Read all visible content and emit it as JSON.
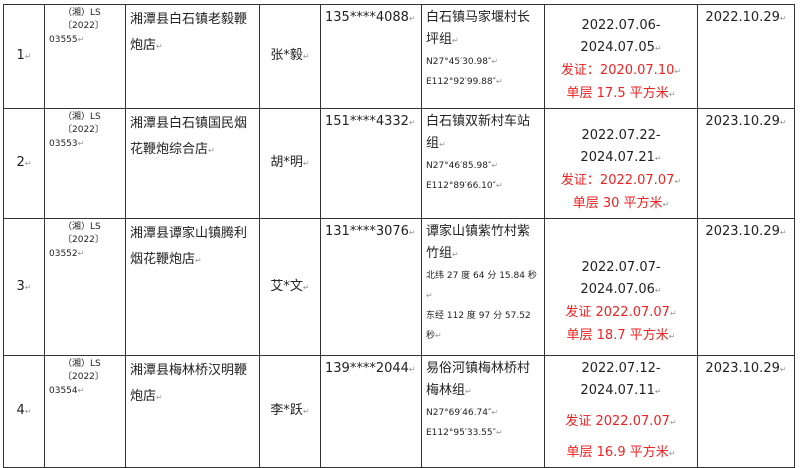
{
  "rows": [
    {
      "no": "1",
      "permit": [
        "（湘）LS",
        "〔2022〕",
        "03555"
      ],
      "shop": "湘潭县白石镇老毅鞭炮店",
      "person": "张*毅",
      "phone": "135****4088",
      "address": "白石镇马家堰村长坪组",
      "coords": [
        "N27°45′30.98″",
        "E112°92′99.88″"
      ],
      "validity": "2022.07.06-2024.07.05",
      "issue": "发证：2020.07.10",
      "area": "单层 17.5 平方米",
      "date": "2022.10.29"
    },
    {
      "no": "2",
      "permit": [
        "（湘）LS",
        "〔2022〕",
        "03553"
      ],
      "shop": "湘潭县白石镇国民烟花鞭炮综合店",
      "person": "胡*明",
      "phone": "151****4332",
      "address": "白石镇双新村车站组",
      "coords": [
        "N27°46′85.98″",
        "E112°89′66.10″"
      ],
      "validity": "2022.07.22-2024.07.21",
      "issue": "发证：2022.07.07",
      "area": "单层 30 平方米",
      "date": "2023.10.29"
    },
    {
      "no": "3",
      "permit": [
        "（湘）LS",
        "〔2022〕",
        "03552"
      ],
      "shop": "湘潭县谭家山镇腾利烟花鞭炮店",
      "person": "艾*文",
      "phone": "131****3076",
      "address": "谭家山镇紫竹村紫竹组",
      "coords": [
        "北纬 27 度 64 分 15.84 秒",
        "东经 112 度 97 分 57.52 秒"
      ],
      "validity": "2022.07.07-2024.07.06",
      "issue": "发证 2022.07.07",
      "area": "单层 18.7 平方米",
      "date": "2023.10.29"
    },
    {
      "no": "4",
      "permit": [
        "（湘）LS",
        "〔2022〕",
        "03554"
      ],
      "shop": "湘潭县梅林桥汉明鞭炮店",
      "person": "李*跃",
      "phone": "139****2044",
      "address": "易俗河镇梅林桥村梅林组",
      "coords": [
        "N27°69′46.74″",
        "E112°95′33.55″"
      ],
      "validity": "2022.07.12-2024.07.11",
      "issue": "发证 2022.07.07",
      "area": "单层 16.9 平方米",
      "date": "2023.10.29"
    }
  ],
  "colors": {
    "issue_text": "#ee2222",
    "border": "#333333"
  }
}
